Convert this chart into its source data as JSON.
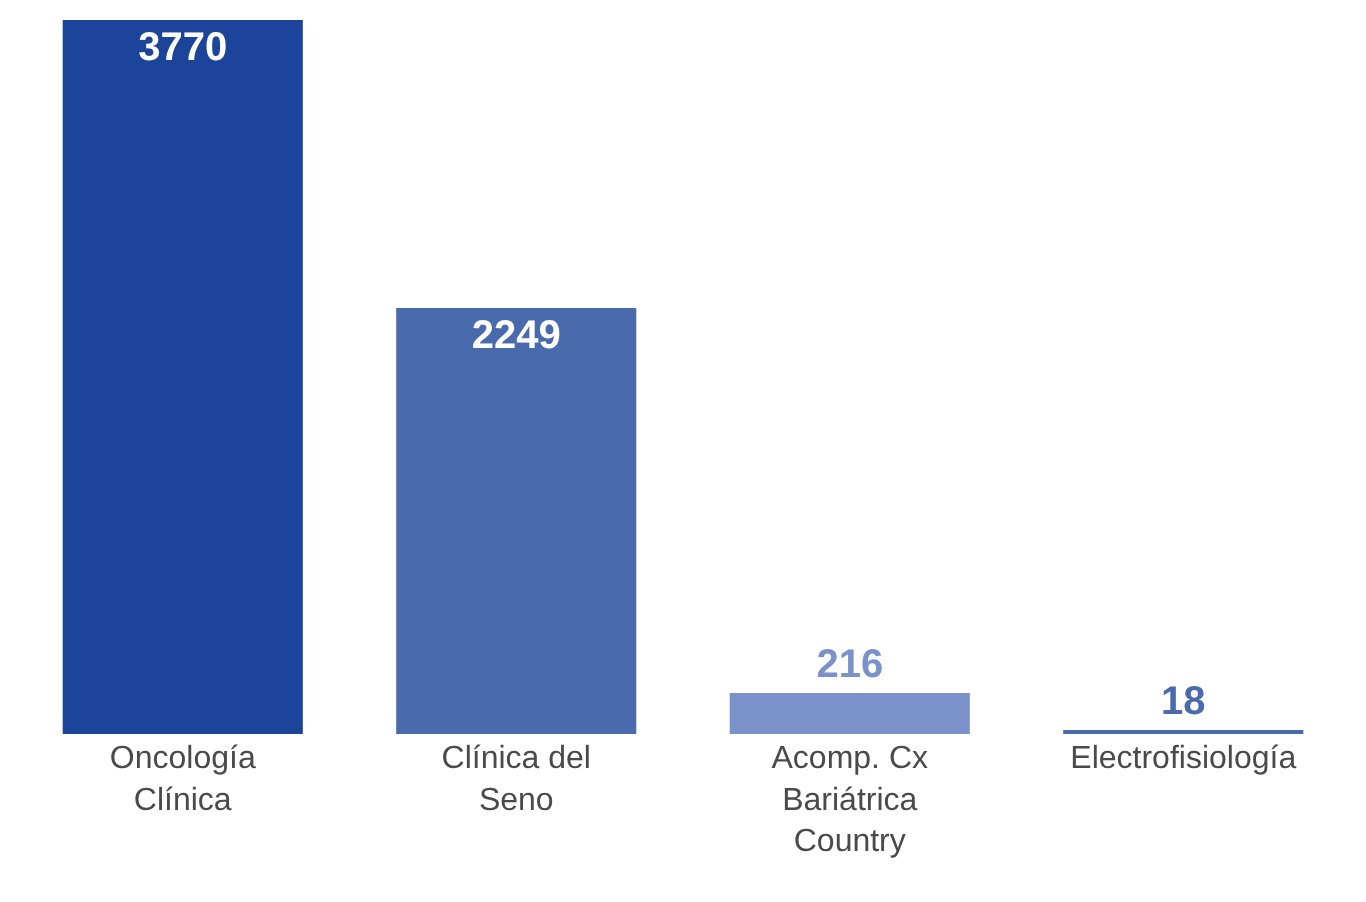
{
  "chart_data": {
    "type": "bar",
    "categories": [
      "Oncología Clínica",
      "Clínica del Seno",
      "Acomp. Cx Bariátrica Country",
      "Electrofisiología"
    ],
    "values": [
      3770,
      2249,
      216,
      18
    ],
    "colors": [
      "#1c449b",
      "#4a6aae",
      "#7a92c9",
      "#4a6aae"
    ],
    "data_labels": true
  }
}
